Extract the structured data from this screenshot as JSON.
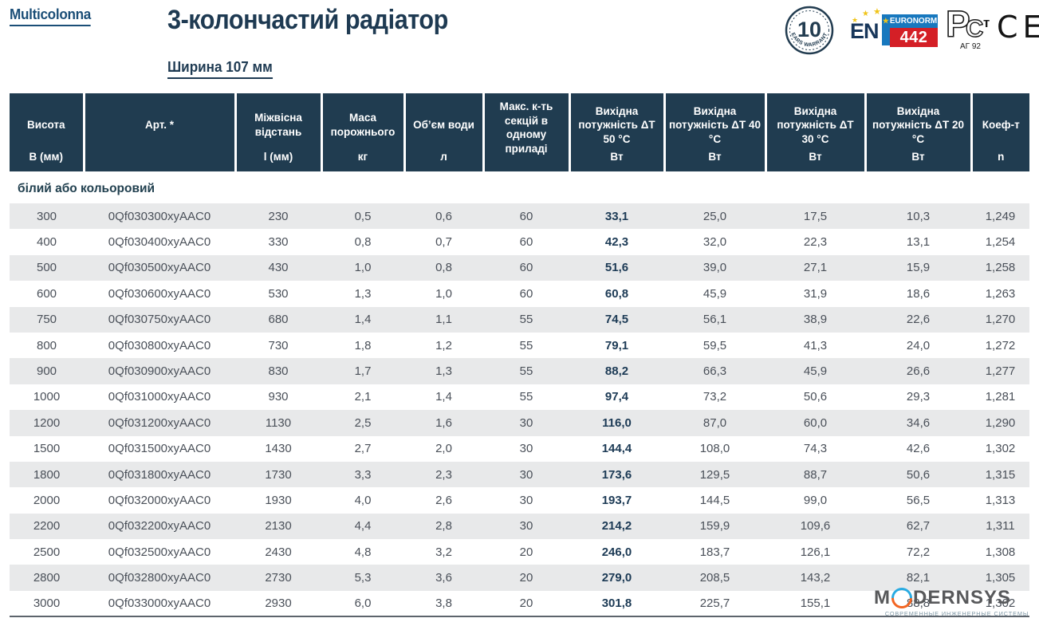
{
  "header": {
    "brand": "Multicolonna",
    "title": "3-колончастий радіатор",
    "subtitle": "Ширина 107 мм"
  },
  "badges": {
    "warranty": {
      "number": "10",
      "text": "YEARS WARRANTY"
    },
    "euronorm": {
      "en": "EN",
      "label": "EURONORM",
      "number": "442"
    },
    "gost": {
      "letters": [
        "Р",
        "С",
        "т"
      ],
      "code": "АГ 92"
    },
    "ce": "CE"
  },
  "icons": {
    "star": "★"
  },
  "table": {
    "section_label": "білий або кольоровий",
    "columns": [
      {
        "title": "Висота",
        "unit": "В (мм)"
      },
      {
        "title": "Арт. *",
        "unit": ""
      },
      {
        "title": "Міжвісна відстань",
        "unit": "l (мм)"
      },
      {
        "title": "Маса порожнього",
        "unit": "кг"
      },
      {
        "title": "Об’єм води",
        "unit": "л"
      },
      {
        "title": "Макс. к-ть секцій в одному приладі",
        "unit": ""
      },
      {
        "title": "Вихідна потужність ΔT 50 °C",
        "unit": "Вт"
      },
      {
        "title": "Вихідна потужність ΔT 40 °C",
        "unit": "Вт"
      },
      {
        "title": "Вихідна потужність ΔT 30 °C",
        "unit": "Вт"
      },
      {
        "title": "Вихідна потужність ΔT 20 °C",
        "unit": "Вт"
      },
      {
        "title": "Коеф-т",
        "unit": "n"
      }
    ],
    "rows": [
      [
        "300",
        "0Qf030300xyAAC0",
        "230",
        "0,5",
        "0,6",
        "60",
        "33,1",
        "25,0",
        "17,5",
        "10,3",
        "1,249"
      ],
      [
        "400",
        "0Qf030400xyAAC0",
        "330",
        "0,8",
        "0,7",
        "60",
        "42,3",
        "32,0",
        "22,3",
        "13,1",
        "1,254"
      ],
      [
        "500",
        "0Qf030500xyAAC0",
        "430",
        "1,0",
        "0,8",
        "60",
        "51,6",
        "39,0",
        "27,1",
        "15,9",
        "1,258"
      ],
      [
        "600",
        "0Qf030600xyAAC0",
        "530",
        "1,3",
        "1,0",
        "60",
        "60,8",
        "45,9",
        "31,9",
        "18,6",
        "1,263"
      ],
      [
        "750",
        "0Qf030750xyAAC0",
        "680",
        "1,4",
        "1,1",
        "55",
        "74,5",
        "56,1",
        "38,9",
        "22,6",
        "1,270"
      ],
      [
        "800",
        "0Qf030800xyAAC0",
        "730",
        "1,8",
        "1,2",
        "55",
        "79,1",
        "59,5",
        "41,3",
        "24,0",
        "1,272"
      ],
      [
        "900",
        "0Qf030900xyAAC0",
        "830",
        "1,7",
        "1,3",
        "55",
        "88,2",
        "66,3",
        "45,9",
        "26,6",
        "1,277"
      ],
      [
        "1000",
        "0Qf031000xyAAC0",
        "930",
        "2,1",
        "1,4",
        "55",
        "97,4",
        "73,2",
        "50,6",
        "29,3",
        "1,281"
      ],
      [
        "1200",
        "0Qf031200xyAAC0",
        "1130",
        "2,5",
        "1,6",
        "30",
        "116,0",
        "87,0",
        "60,0",
        "34,6",
        "1,290"
      ],
      [
        "1500",
        "0Qf031500xyAAC0",
        "1430",
        "2,7",
        "2,0",
        "30",
        "144,4",
        "108,0",
        "74,3",
        "42,6",
        "1,302"
      ],
      [
        "1800",
        "0Qf031800xyAAC0",
        "1730",
        "3,3",
        "2,3",
        "30",
        "173,6",
        "129,5",
        "88,7",
        "50,6",
        "1,315"
      ],
      [
        "2000",
        "0Qf032000xyAAC0",
        "1930",
        "4,0",
        "2,6",
        "30",
        "193,7",
        "144,5",
        "99,0",
        "56,5",
        "1,313"
      ],
      [
        "2200",
        "0Qf032200xyAAC0",
        "2130",
        "4,4",
        "2,8",
        "30",
        "214,2",
        "159,9",
        "109,6",
        "62,7",
        "1,311"
      ],
      [
        "2500",
        "0Qf032500xyAAC0",
        "2430",
        "4,8",
        "3,2",
        "20",
        "246,0",
        "183,7",
        "126,1",
        "72,2",
        "1,308"
      ],
      [
        "2800",
        "0Qf032800xyAAC0",
        "2730",
        "5,3",
        "3,6",
        "20",
        "279,0",
        "208,5",
        "143,2",
        "82,1",
        "1,305"
      ],
      [
        "3000",
        "0Qf033000xyAAC0",
        "2930",
        "6,0",
        "3,8",
        "20",
        "301,8",
        "225,7",
        "155,1",
        "88,8",
        "1,302"
      ]
    ]
  },
  "watermark": {
    "m": "M",
    "rest": "DERNSYS",
    "subtitle": "СОВРЕМЕННЫЕ ИНЖЕНЕРНЫЕ СИСТЕМЫ"
  },
  "colors": {
    "header_bg": "#203c50",
    "stripe": "#e8e9ea",
    "navy_text": "#1e3a52",
    "body_text": "#4a5059",
    "euronorm_blue": "#1878be",
    "euronorm_red": "#d41f26",
    "star_gold": "#f0c419",
    "watermark_blue": "#29abe2",
    "watermark_orange": "#f26522",
    "watermark_gray": "#58595b"
  }
}
